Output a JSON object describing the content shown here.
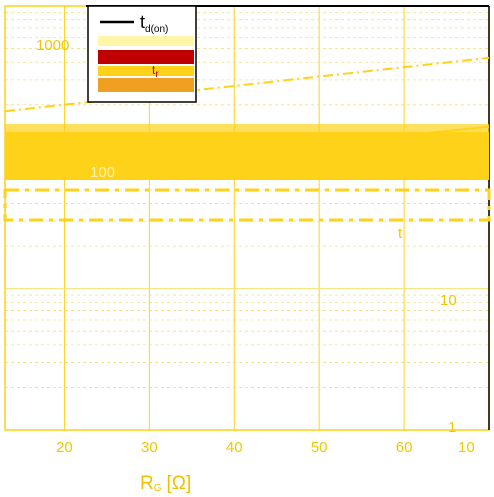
{
  "colors": {
    "accent": "#ffd21a",
    "grid": "#f5e27a",
    "tick_text": "#f0c800",
    "legend_red": "#c00000",
    "legend_black": "#000000"
  },
  "chart_data": {
    "type": "line",
    "title": "",
    "xlabel_main": "R",
    "xlabel_sub": "G",
    "xlabel_unit": "[Ω]",
    "x_ticks": [
      "20",
      "30",
      "40",
      "50",
      "60"
    ],
    "x_tick_values": [
      20,
      30,
      40,
      50,
      60
    ],
    "x_tick_right": "10",
    "y_ticks_right": [
      "1000",
      "100",
      "10",
      "1"
    ],
    "xlim": [
      13,
      70
    ],
    "ylim": [
      1,
      1000
    ],
    "yscale": "log",
    "grid": true,
    "legend_position": "top-left",
    "legend": [
      {
        "main": "t",
        "sub": "d(on)",
        "color": "#000000"
      },
      {
        "main": "t",
        "sub": "r",
        "color": "#c00000"
      }
    ],
    "series": [
      {
        "x": [
          13,
          70
        ],
        "y": [
          180,
          430
        ],
        "color": "#ffd21a",
        "dash": "10 4 2 4"
      },
      {
        "x": [
          13,
          70
        ],
        "y": [
          62,
          140
        ],
        "color": "#ffd21a",
        "dash": ""
      }
    ],
    "annotations": [
      "t"
    ]
  }
}
